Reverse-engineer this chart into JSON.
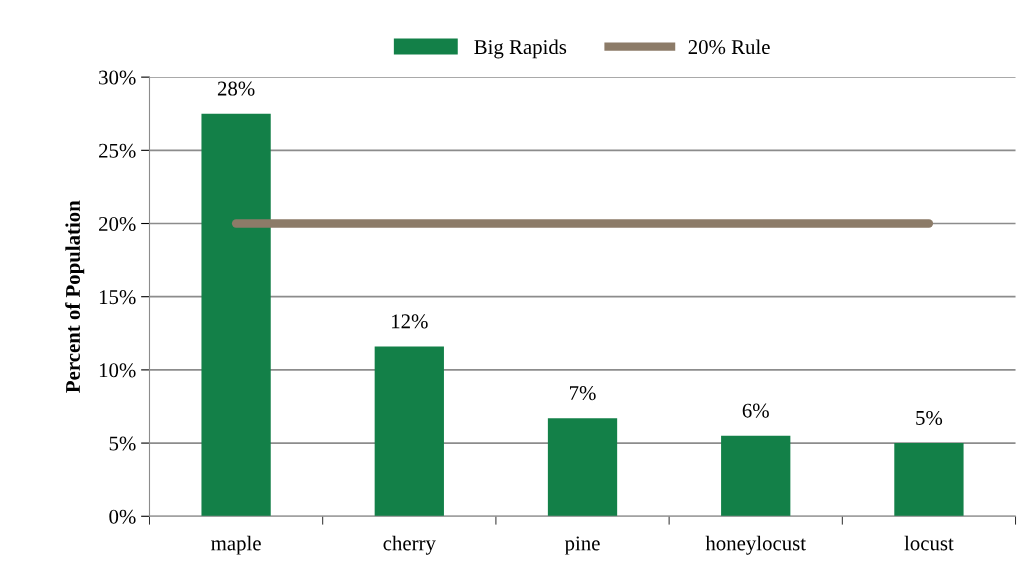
{
  "chart_data": {
    "type": "bar",
    "ylabel": "Percent of Population",
    "categories": [
      "maple",
      "cherry",
      "pine",
      "honeylocust",
      "locust"
    ],
    "series": [
      {
        "name": "Big Rapids",
        "color": "#138048",
        "values": [
          27.5,
          11.6,
          6.7,
          5.5,
          5.0
        ],
        "value_labels": [
          "28%",
          "12%",
          "7%",
          "6%",
          "5%"
        ]
      },
      {
        "name": "20% Rule",
        "type": "line",
        "color": "#8c7b68",
        "values": [
          20,
          20,
          20,
          20,
          20
        ]
      }
    ],
    "ylim": [
      0,
      30
    ],
    "yticks": [
      {
        "value": 0,
        "label": "0%"
      },
      {
        "value": 5,
        "label": "5%"
      },
      {
        "value": 10,
        "label": "10%"
      },
      {
        "value": 15,
        "label": "15%"
      },
      {
        "value": 20,
        "label": "20%"
      },
      {
        "value": 25,
        "label": "25%"
      },
      {
        "value": 30,
        "label": "30%"
      }
    ],
    "grid": "y",
    "legend": "top",
    "marker": "none",
    "line_style": "solid"
  }
}
